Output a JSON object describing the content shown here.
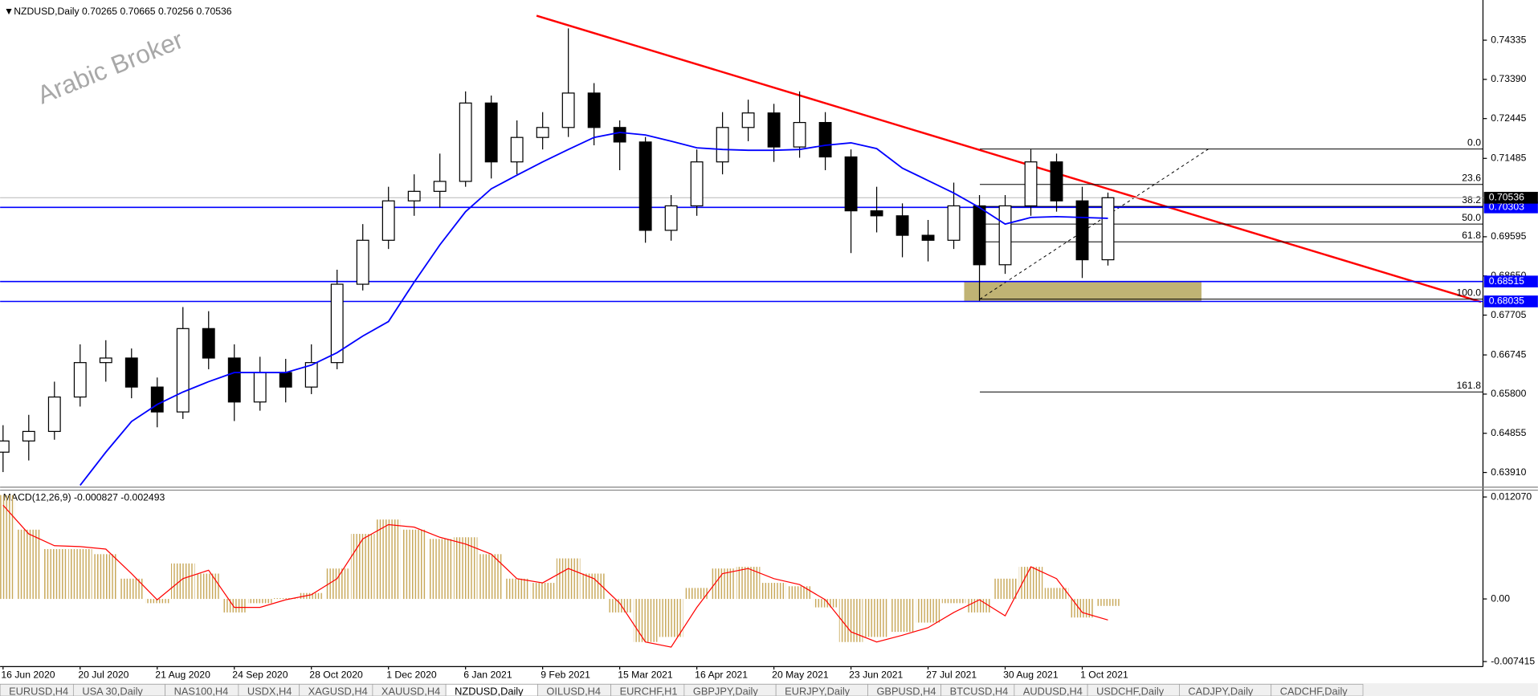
{
  "chart_data": {
    "type": "candlestick",
    "title": "NZDUSD,Daily  0.70265 0.70665 0.70256 0.70536",
    "watermark": "Arabic Broker",
    "categories": [
      "16 Jun 2020",
      null,
      null,
      "20 Jul 2020",
      null,
      null,
      "21 Aug 2020",
      null,
      null,
      "24 Sep 2020",
      null,
      null,
      "28 Oct 2020",
      null,
      null,
      "1 Dec 2020",
      null,
      null,
      "6 Jan 2021",
      null,
      null,
      "9 Feb 2021",
      null,
      null,
      "15 Mar 2021",
      null,
      null,
      "16 Apr 2021",
      null,
      null,
      "20 May 2021",
      null,
      null,
      "23 Jun 2021",
      null,
      null,
      "27 Jul 2021",
      null,
      null,
      "30 Aug 2021",
      null,
      null,
      "1 Oct 2021",
      null
    ],
    "open": [
      0.644,
      0.6467,
      0.649,
      0.6573,
      0.6656,
      0.6667,
      0.6597,
      0.6537,
      0.6738,
      0.6667,
      0.6561,
      0.6632,
      0.6597,
      0.6656,
      0.6845,
      0.6951,
      0.7046,
      0.7069,
      0.7093,
      0.7282,
      0.714,
      0.7199,
      0.7223,
      0.7306,
      0.7223,
      0.7188,
      0.6975,
      0.7034,
      0.714,
      0.7223,
      0.7258,
      0.7176,
      0.7235,
      0.7152,
      0.7022,
      0.701,
      0.6963,
      0.6951,
      0.7034,
      0.6892,
      0.7034,
      0.714,
      0.7046,
      0.6904
    ],
    "high": [
      0.6505,
      0.653,
      0.661,
      0.67,
      0.671,
      0.669,
      0.662,
      0.679,
      0.678,
      0.67,
      0.667,
      0.6665,
      0.67,
      0.688,
      0.699,
      0.708,
      0.711,
      0.716,
      0.731,
      0.73,
      0.724,
      0.726,
      0.7462,
      0.733,
      0.724,
      0.72,
      0.706,
      0.717,
      0.726,
      0.729,
      0.728,
      0.731,
      0.726,
      0.717,
      0.708,
      0.704,
      0.7,
      0.709,
      0.706,
      0.706,
      0.717,
      0.716,
      0.708,
      0.7066
    ],
    "low": [
      0.6392,
      0.642,
      0.647,
      0.655,
      0.661,
      0.657,
      0.65,
      0.652,
      0.664,
      0.6515,
      0.654,
      0.656,
      0.658,
      0.664,
      0.683,
      0.693,
      0.701,
      0.703,
      0.708,
      0.71,
      0.711,
      0.717,
      0.72,
      0.718,
      0.712,
      0.6945,
      0.695,
      0.701,
      0.711,
      0.719,
      0.714,
      0.715,
      0.712,
      0.692,
      0.697,
      0.691,
      0.69,
      0.693,
      0.6805,
      0.687,
      0.701,
      0.702,
      0.686,
      0.689
    ],
    "close": [
      0.6467,
      0.649,
      0.6573,
      0.6656,
      0.6667,
      0.6597,
      0.6537,
      0.6738,
      0.6667,
      0.6561,
      0.6632,
      0.6597,
      0.6656,
      0.6845,
      0.6951,
      0.7046,
      0.7069,
      0.7093,
      0.7282,
      0.714,
      0.7199,
      0.7223,
      0.7306,
      0.7223,
      0.7188,
      0.6975,
      0.7034,
      0.714,
      0.7223,
      0.7258,
      0.7176,
      0.7235,
      0.7152,
      0.7022,
      0.701,
      0.6963,
      0.6951,
      0.7034,
      0.6892,
      0.7034,
      0.714,
      0.7046,
      0.6904,
      0.70536
    ],
    "candle_color": "#000000",
    "ylim": [
      0.63555,
      0.75186
    ],
    "yticks": [
      0.74335,
      {
        "value": 0.7339,
        "label": "0.73390"
      },
      0.72445,
      0.71485,
      0.69595,
      {
        "value": 0.6865,
        "label": "0.68650"
      },
      0.67705,
      0.66745,
      {
        "value": 0.658,
        "label": "0.65800"
      },
      0.64855,
      {
        "value": 0.6391,
        "label": "0.63910"
      }
    ],
    "ma": {
      "color": "#0000ff",
      "values": [
        null,
        null,
        null,
        0.636,
        0.644,
        0.6514,
        0.6555,
        0.6585,
        0.661,
        0.6632,
        0.6632,
        0.6632,
        0.665,
        0.668,
        0.672,
        0.6755,
        0.685,
        0.694,
        0.702,
        0.7075,
        0.7108,
        0.714,
        0.717,
        0.7199,
        0.7211,
        0.7205,
        0.719,
        0.7174,
        0.717,
        0.7168,
        0.7168,
        0.717,
        0.718,
        0.7186,
        0.7172,
        0.7125,
        0.7095,
        0.7065,
        0.703,
        0.699,
        0.7006,
        0.7008,
        0.7006,
        0.7004
      ]
    },
    "levels": [
      0.70303,
      0.68515,
      0.68035
    ],
    "level_color": "#0000ff",
    "fibonacci": {
      "high": 0.7171,
      "low": 0.6809,
      "color": "#000000",
      "levels": [
        {
          "value": 0,
          "label": "0.0"
        },
        23.6,
        38.2,
        {
          "value": 50,
          "label": "50.0"
        },
        61.8,
        {
          "value": 100,
          "label": "100.0"
        },
        161.8
      ]
    },
    "macd": {
      "type": "bar",
      "title": "MACD(12,26,9) -0.000827 -0.002493",
      "color": "#c8a85a",
      "signal_color": "#ff0000",
      "values": [
        0.0123,
        0.0082,
        0.0059,
        0.0059,
        0.0053,
        0.0024,
        -0.0005,
        0.0042,
        0.003,
        -0.0016,
        -0.0005,
        0.0001,
        0.0007,
        0.0036,
        0.0077,
        0.0094,
        0.0082,
        0.0071,
        0.0073,
        0.0053,
        0.0024,
        0.0019,
        0.0048,
        0.003,
        -0.0016,
        -0.0051,
        -0.0045,
        0.0013,
        0.0036,
        0.0038,
        0.0019,
        0.0015,
        -0.001,
        -0.0051,
        -0.0045,
        -0.0039,
        -0.0028,
        -0.0005,
        -0.0016,
        0.0024,
        0.0038,
        0.0013,
        -0.0022,
        -0.000827
      ],
      "signal": [
        0.0111,
        0.0077,
        0.0063,
        0.0062,
        0.0059,
        0.003,
        -0.0001,
        0.0024,
        0.0034,
        -0.001,
        -0.001,
        -0.0001,
        0.0005,
        0.0024,
        0.0071,
        0.0088,
        0.0085,
        0.0073,
        0.0065,
        0.0053,
        0.0024,
        0.0019,
        0.0036,
        0.0024,
        -0.0005,
        -0.0051,
        -0.0057,
        -0.001,
        0.003,
        0.0036,
        0.0024,
        0.0017,
        -0.0001,
        -0.0039,
        -0.0051,
        -0.0043,
        -0.0034,
        -0.0016,
        -0.0001,
        -0.002,
        0.0038,
        0.0024,
        -0.0016,
        -0.002493
      ],
      "ylim": [
        -0.00801,
        0.01288
      ],
      "yticks": [
        {
          "value": 0.01207,
          "label": "0.012070"
        },
        {
          "value": 0,
          "label": "0.00"
        },
        {
          "value": -0.007415,
          "label": "-0.007415"
        }
      ]
    }
  },
  "tabs": [
    "EURUSD,H4",
    "USA 30,Daily",
    "NAS100,H4",
    "USDX,H4",
    "XAGUSD,H4",
    "XAUUSD,H4",
    "NZDUSD,Daily",
    "OILUSD,H4",
    "EURCHF,H1",
    "GBPJPY,Daily",
    "EURJPY,Daily",
    "GBPUSD,H4",
    "BTCUSD,H4",
    "AUDUSD,H4",
    "USDCHF,Daily",
    "CADJPY,Daily",
    "CADCHF,Daily"
  ],
  "active_tab": "NZDUSD,Daily"
}
